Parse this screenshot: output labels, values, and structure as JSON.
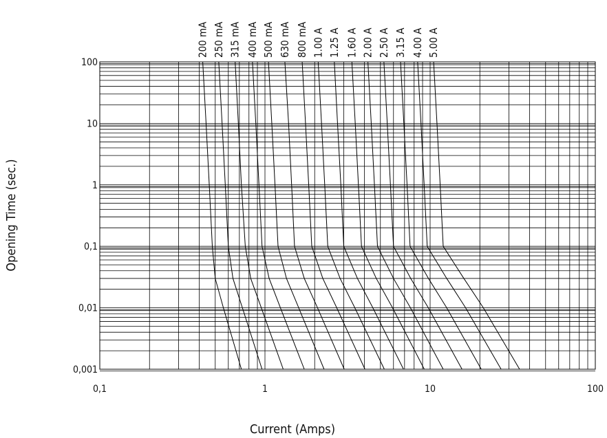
{
  "chart_data": {
    "type": "line",
    "xlabel": "Current (Amps)",
    "ylabel": "Opening Time (sec.)",
    "xscale": "log",
    "yscale": "log",
    "grid": true,
    "xlim": [
      0.1,
      100
    ],
    "ylim": [
      0.001,
      100
    ],
    "xticks": [
      {
        "value": 0.1,
        "label": "0,1"
      },
      1,
      10,
      100
    ],
    "yticks": [
      {
        "value": 0.001,
        "label": "0,001"
      },
      {
        "value": 0.01,
        "label": "0,01"
      },
      {
        "value": 0.1,
        "label": "0,1"
      },
      1,
      10,
      100
    ],
    "series": [
      {
        "name": "200 mA",
        "color": "#000000",
        "x": [
          0.42,
          0.44,
          0.46,
          0.48,
          0.5,
          0.56,
          0.72
        ],
        "values": [
          100,
          10,
          1,
          0.1,
          0.03,
          0.01,
          0.001
        ]
      },
      {
        "name": "250 mA",
        "color": "#000000",
        "x": [
          0.525,
          0.55,
          0.575,
          0.6,
          0.64,
          0.73,
          0.96
        ],
        "values": [
          100,
          10,
          1,
          0.1,
          0.03,
          0.01,
          0.001
        ]
      },
      {
        "name": "315 mA",
        "color": "#000000",
        "x": [
          0.66,
          0.69,
          0.72,
          0.76,
          0.82,
          0.95,
          1.29
        ],
        "values": [
          100,
          10,
          1,
          0.1,
          0.03,
          0.01,
          0.001
        ]
      },
      {
        "name": "400 mA",
        "color": "#000000",
        "x": [
          0.84,
          0.88,
          0.92,
          0.96,
          1.06,
          1.24,
          1.73
        ],
        "values": [
          100,
          10,
          1,
          0.1,
          0.03,
          0.01,
          0.001
        ]
      },
      {
        "name": "500 mA",
        "color": "#000000",
        "x": [
          1.05,
          1.1,
          1.15,
          1.2,
          1.35,
          1.6,
          2.28
        ],
        "values": [
          100,
          10,
          1,
          0.1,
          0.03,
          0.01,
          0.001
        ]
      },
      {
        "name": "630 mA",
        "color": "#000000",
        "x": [
          1.32,
          1.39,
          1.45,
          1.51,
          1.73,
          2.08,
          3.02
        ],
        "values": [
          100,
          10,
          1,
          0.1,
          0.03,
          0.01,
          0.001
        ]
      },
      {
        "name": "800 mA",
        "color": "#000000",
        "x": [
          1.68,
          1.76,
          1.84,
          1.92,
          2.24,
          2.72,
          4.03
        ],
        "values": [
          100,
          10,
          1,
          0.1,
          0.03,
          0.01,
          0.001
        ]
      },
      {
        "name": "1.00 A",
        "color": "#000000",
        "x": [
          2.1,
          2.2,
          2.3,
          2.4,
          2.85,
          3.5,
          5.28
        ],
        "values": [
          100,
          10,
          1,
          0.1,
          0.03,
          0.01,
          0.001
        ]
      },
      {
        "name": "1.25 A",
        "color": "#000000",
        "x": [
          2.63,
          2.75,
          2.88,
          3.0,
          3.63,
          4.5,
          6.9
        ],
        "values": [
          100,
          10,
          1,
          0.1,
          0.03,
          0.01,
          0.001
        ]
      },
      {
        "name": "1.60 A",
        "color": "#000000",
        "x": [
          3.36,
          3.52,
          3.68,
          3.84,
          4.72,
          5.92,
          9.22
        ],
        "values": [
          100,
          10,
          1,
          0.1,
          0.03,
          0.01,
          0.001
        ]
      },
      {
        "name": "2.00 A",
        "color": "#000000",
        "x": [
          4.2,
          4.4,
          4.6,
          4.8,
          6.0,
          7.6,
          12
        ],
        "values": [
          100,
          10,
          1,
          0.1,
          0.03,
          0.01,
          0.001
        ]
      },
      {
        "name": "2.50 A",
        "color": "#000000",
        "x": [
          5.25,
          5.5,
          5.75,
          6.0,
          7.63,
          9.75,
          15.6
        ],
        "values": [
          100,
          10,
          1,
          0.1,
          0.03,
          0.01,
          0.001
        ]
      },
      {
        "name": "3.15 A",
        "color": "#000000",
        "x": [
          6.62,
          6.93,
          7.25,
          7.56,
          9.77,
          12.6,
          20.4
        ],
        "values": [
          100,
          10,
          1,
          0.1,
          0.03,
          0.01,
          0.001
        ]
      },
      {
        "name": "4.00 A",
        "color": "#000000",
        "x": [
          8.4,
          8.8,
          9.2,
          9.6,
          12.6,
          16.4,
          26.9
        ],
        "values": [
          100,
          10,
          1,
          0.1,
          0.03,
          0.01,
          0.001
        ]
      },
      {
        "name": "5.00 A",
        "color": "#000000",
        "x": [
          10.5,
          11,
          11.5,
          12,
          16,
          21,
          34.8
        ],
        "values": [
          100,
          10,
          1,
          0.1,
          0.03,
          0.01,
          0.001
        ]
      }
    ]
  }
}
